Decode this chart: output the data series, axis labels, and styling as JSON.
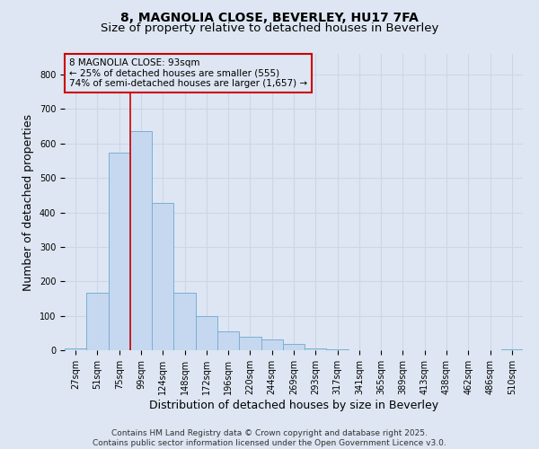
{
  "title_line1": "8, MAGNOLIA CLOSE, BEVERLEY, HU17 7FA",
  "title_line2": "Size of property relative to detached houses in Beverley",
  "xlabel": "Distribution of detached houses by size in Beverley",
  "ylabel": "Number of detached properties",
  "categories": [
    "27sqm",
    "51sqm",
    "75sqm",
    "99sqm",
    "124sqm",
    "148sqm",
    "172sqm",
    "196sqm",
    "220sqm",
    "244sqm",
    "269sqm",
    "293sqm",
    "317sqm",
    "341sqm",
    "365sqm",
    "389sqm",
    "413sqm",
    "438sqm",
    "462sqm",
    "486sqm",
    "510sqm"
  ],
  "values": [
    5,
    168,
    573,
    635,
    428,
    168,
    100,
    55,
    40,
    30,
    18,
    5,
    2,
    1,
    0,
    0,
    0,
    0,
    0,
    0,
    2
  ],
  "bar_color": "#c5d8f0",
  "bar_edge_color": "#7aafd4",
  "property_line_index": 3,
  "annotation_text": "8 MAGNOLIA CLOSE: 93sqm\n← 25% of detached houses are smaller (555)\n74% of semi-detached houses are larger (1,657) →",
  "annotation_box_color": "#cc0000",
  "vline_color": "#cc0000",
  "ylim": [
    0,
    860
  ],
  "yticks": [
    0,
    100,
    200,
    300,
    400,
    500,
    600,
    700,
    800
  ],
  "grid_color": "#ccd6e8",
  "bg_color": "#dde6f2",
  "footer_line1": "Contains HM Land Registry data © Crown copyright and database right 2025.",
  "footer_line2": "Contains public sector information licensed under the Open Government Licence v3.0.",
  "title_fontsize": 10,
  "subtitle_fontsize": 9.5,
  "axis_label_fontsize": 9,
  "tick_fontsize": 7,
  "annotation_fontsize": 7.5,
  "footer_fontsize": 6.5
}
